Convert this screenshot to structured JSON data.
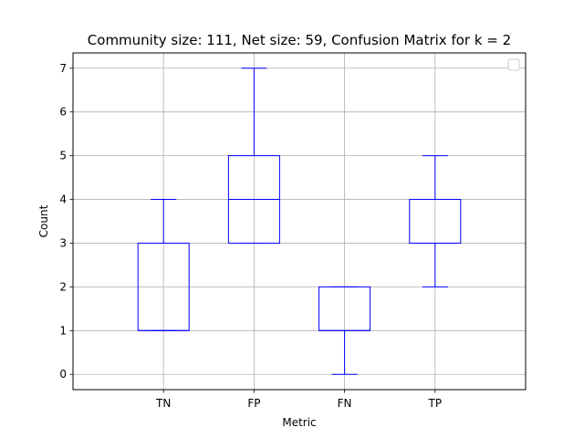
{
  "chart_data": {
    "type": "box",
    "title": "Community size: 111, Net size: 59, Confusion Matrix for k = 2",
    "xlabel": "Metric",
    "ylabel": "Count",
    "categories": [
      "TN",
      "FP",
      "FN",
      "TP"
    ],
    "ylim": [
      -0.35,
      7.35
    ],
    "yticks": [
      0,
      1,
      2,
      3,
      4,
      5,
      6,
      7
    ],
    "grid": true,
    "legend": "top-right",
    "box_color": "#0000ff",
    "boxes": [
      {
        "category": "TN",
        "whisker_low": 1,
        "q1": 1,
        "median": 1,
        "q3": 3,
        "whisker_high": 4
      },
      {
        "category": "FP",
        "whisker_low": 3,
        "q1": 3,
        "median": 4,
        "q3": 5,
        "whisker_high": 7
      },
      {
        "category": "FN",
        "whisker_low": 0,
        "q1": 1,
        "median": 1,
        "q3": 2,
        "whisker_high": 2
      },
      {
        "category": "TP",
        "whisker_low": 2,
        "q1": 3,
        "median": 3,
        "q3": 4,
        "whisker_high": 5
      }
    ]
  }
}
